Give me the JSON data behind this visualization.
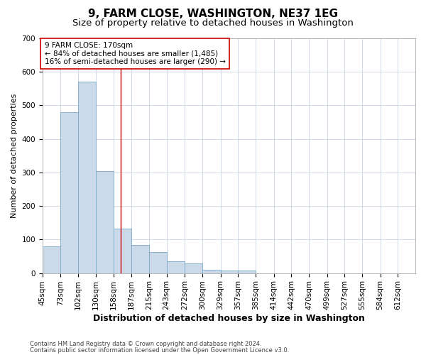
{
  "title": "9, FARM CLOSE, WASHINGTON, NE37 1EG",
  "subtitle": "Size of property relative to detached houses in Washington",
  "xlabel": "Distribution of detached houses by size in Washington",
  "ylabel": "Number of detached properties",
  "bar_color": "#ccd9e8",
  "bar_edge_color": "#7aaac8",
  "grid_color": "#c8d4e3",
  "annotation_line_color": "#cc0000",
  "annotation_box_color": "#ffffff",
  "annotation_box_edge": "#cc0000",
  "annotation_text_line1": "9 FARM CLOSE: 170sqm",
  "annotation_text_line2": "← 84% of detached houses are smaller (1,485)",
  "annotation_text_line3": "16% of semi-detached houses are larger (290) →",
  "property_size": 170,
  "footnote1": "Contains HM Land Registry data © Crown copyright and database right 2024.",
  "footnote2": "Contains public sector information licensed under the Open Government Licence v3.0.",
  "bin_labels": [
    "45sqm",
    "73sqm",
    "102sqm",
    "130sqm",
    "158sqm",
    "187sqm",
    "215sqm",
    "243sqm",
    "272sqm",
    "300sqm",
    "329sqm",
    "357sqm",
    "385sqm",
    "414sqm",
    "442sqm",
    "470sqm",
    "499sqm",
    "527sqm",
    "555sqm",
    "584sqm",
    "612sqm"
  ],
  "bin_edges": [
    45,
    73,
    102,
    130,
    158,
    187,
    215,
    243,
    272,
    300,
    329,
    357,
    385,
    414,
    442,
    470,
    499,
    527,
    555,
    584,
    612
  ],
  "bar_heights": [
    80,
    480,
    570,
    305,
    133,
    84,
    63,
    35,
    28,
    10,
    7,
    7,
    0,
    0,
    0,
    0,
    0,
    0,
    0,
    0,
    0
  ],
  "ylim": [
    0,
    700
  ],
  "yticks": [
    0,
    100,
    200,
    300,
    400,
    500,
    600,
    700
  ],
  "background_color": "#ffffff",
  "plot_bg_color": "#ffffff",
  "title_fontsize": 11,
  "subtitle_fontsize": 9.5,
  "xlabel_fontsize": 9,
  "ylabel_fontsize": 8,
  "tick_fontsize": 7.5,
  "annotation_fontsize": 7.5,
  "footnote_fontsize": 6
}
